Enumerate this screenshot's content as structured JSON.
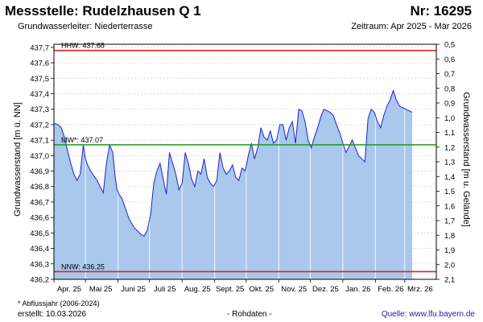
{
  "header": {
    "title": "Messstelle: Rudelzhausen Q 1",
    "nr": "Nr: 16295",
    "aquifer": "Grundwasserleiter:   Niederterrasse",
    "period": "Zeitraum: Apr 2025 - Mär 2026"
  },
  "footer": {
    "footnote": "* Abflussjahr (2006-2024)",
    "created": "erstellt:  10.03.2026",
    "rawdata": "- Rohdaten -",
    "source_label": "Quelle:",
    "source_url": "www.lfu.bayern.de"
  },
  "colors": {
    "area_fill": "#a9c8ec",
    "line": "#1f1fd1",
    "hhw": "#e02020",
    "mw": "#1a9a1a",
    "nnw": "#e02020",
    "grid": "#d0d0d0",
    "month_line": "#ffffff"
  },
  "chart_data": {
    "type": "area",
    "xlabel": "",
    "ylabel_left": "Grundwasserstand [m ü. NN]",
    "ylabel_right": "Grundwasserstand [m u. Gelände]",
    "ylim": [
      436.2,
      437.72
    ],
    "ylim_right": [
      2.1,
      0.5
    ],
    "grid": true,
    "x_start": "2025-04-01",
    "x_end": "2026-03-31",
    "x_ticks": [
      "Apr. 25",
      "Mai 25",
      "Juni 25",
      "Juli 25",
      "Aug. 25",
      "Sept. 25",
      "Okt. 25",
      "Nov. 25",
      "Dez. 25",
      "Jan. 26",
      "Feb. 26",
      "Mrz. 26"
    ],
    "y_ticks_left": [
      "436,2",
      "436,3",
      "436,4",
      "436,5",
      "436,6",
      "436,7",
      "436,8",
      "436,9",
      "437,0",
      "437,1",
      "437,2",
      "437,3",
      "437,4",
      "437,5",
      "437,6",
      "437,7"
    ],
    "y_ticks_right": [
      "0,5",
      "0,6",
      "0,7",
      "0,8",
      "0,9",
      "1,0",
      "1,1",
      "1,2",
      "1,3",
      "1,4",
      "1,5",
      "1,6",
      "1,7",
      "1,8",
      "1,9",
      "2,0",
      "2,1"
    ],
    "reference_lines": [
      {
        "name": "HHW",
        "label": "HHW: 437.68",
        "value": 437.68
      },
      {
        "name": "MW*",
        "label": "MW*: 437.07",
        "value": 437.07
      },
      {
        "name": "NNW",
        "label": "NNW: 436.25",
        "value": 436.25
      }
    ],
    "series": [
      {
        "name": "",
        "x": [
          "2025-04-01",
          "2025-04-05",
          "2025-04-08",
          "2025-04-11",
          "2025-04-14",
          "2025-04-17",
          "2025-04-20",
          "2025-04-23",
          "2025-04-26",
          "2025-04-29",
          "2025-05-01",
          "2025-05-03",
          "2025-05-06",
          "2025-05-09",
          "2025-05-12",
          "2025-05-15",
          "2025-05-18",
          "2025-05-21",
          "2025-05-24",
          "2025-05-27",
          "2025-05-29",
          "2025-05-31",
          "2025-06-02",
          "2025-06-05",
          "2025-06-08",
          "2025-06-11",
          "2025-06-14",
          "2025-06-17",
          "2025-06-20",
          "2025-06-23",
          "2025-06-26",
          "2025-06-29",
          "2025-07-02",
          "2025-07-05",
          "2025-07-08",
          "2025-07-11",
          "2025-07-14",
          "2025-07-17",
          "2025-07-20",
          "2025-07-23",
          "2025-07-26",
          "2025-07-29",
          "2025-08-01",
          "2025-08-04",
          "2025-08-07",
          "2025-08-10",
          "2025-08-13",
          "2025-08-16",
          "2025-08-19",
          "2025-08-22",
          "2025-08-25",
          "2025-08-28",
          "2025-08-31",
          "2025-09-03",
          "2025-09-06",
          "2025-09-09",
          "2025-09-12",
          "2025-09-15",
          "2025-09-18",
          "2025-09-21",
          "2025-09-24",
          "2025-09-27",
          "2025-09-30",
          "2025-10-03",
          "2025-10-06",
          "2025-10-09",
          "2025-10-12",
          "2025-10-15",
          "2025-10-18",
          "2025-10-21",
          "2025-10-24",
          "2025-10-27",
          "2025-10-30",
          "2025-11-02",
          "2025-11-05",
          "2025-11-08",
          "2025-11-11",
          "2025-11-14",
          "2025-11-17",
          "2025-11-20",
          "2025-11-23",
          "2025-11-26",
          "2025-11-29",
          "2025-12-02",
          "2025-12-05",
          "2025-12-08",
          "2025-12-11",
          "2025-12-14",
          "2025-12-17",
          "2025-12-20",
          "2025-12-23",
          "2025-12-26",
          "2025-12-29",
          "2026-01-01",
          "2026-01-04",
          "2026-01-07",
          "2026-01-10",
          "2026-01-13",
          "2026-01-16",
          "2026-01-19",
          "2026-01-22",
          "2026-01-25",
          "2026-01-28",
          "2026-01-31",
          "2026-02-03",
          "2026-02-06",
          "2026-02-09",
          "2026-02-12",
          "2026-02-15",
          "2026-02-18",
          "2026-02-21",
          "2026-02-24",
          "2026-02-27",
          "2026-03-02",
          "2026-03-05",
          "2026-03-08"
        ],
        "values": [
          437.21,
          437.2,
          437.18,
          437.12,
          437.03,
          436.95,
          436.88,
          436.84,
          436.88,
          437.07,
          436.98,
          436.94,
          436.9,
          436.87,
          436.84,
          436.8,
          436.76,
          436.95,
          437.07,
          437.02,
          436.88,
          436.78,
          436.75,
          436.72,
          436.66,
          436.6,
          436.56,
          436.53,
          436.51,
          436.49,
          436.48,
          436.52,
          436.62,
          436.82,
          436.9,
          436.95,
          436.85,
          436.75,
          437.02,
          436.95,
          436.88,
          436.78,
          436.82,
          437.02,
          436.95,
          436.85,
          436.8,
          436.9,
          436.88,
          436.98,
          436.86,
          436.82,
          436.8,
          436.84,
          437.02,
          436.92,
          436.88,
          436.9,
          436.94,
          436.86,
          436.84,
          436.92,
          436.9,
          437.0,
          437.08,
          436.98,
          437.05,
          437.18,
          437.12,
          437.1,
          437.16,
          437.08,
          437.1,
          437.2,
          437.2,
          437.1,
          437.18,
          437.22,
          437.08,
          437.3,
          437.29,
          437.22,
          437.1,
          437.05,
          437.12,
          437.18,
          437.25,
          437.3,
          437.29,
          437.28,
          437.26,
          437.2,
          437.15,
          437.08,
          437.02,
          437.06,
          437.1,
          437.05,
          437.0,
          436.98,
          436.96,
          437.24,
          437.3,
          437.28,
          437.22,
          437.18,
          437.26,
          437.32,
          437.36,
          437.42,
          437.36,
          437.32,
          437.31,
          437.3,
          437.29,
          437.28
        ]
      }
    ]
  }
}
